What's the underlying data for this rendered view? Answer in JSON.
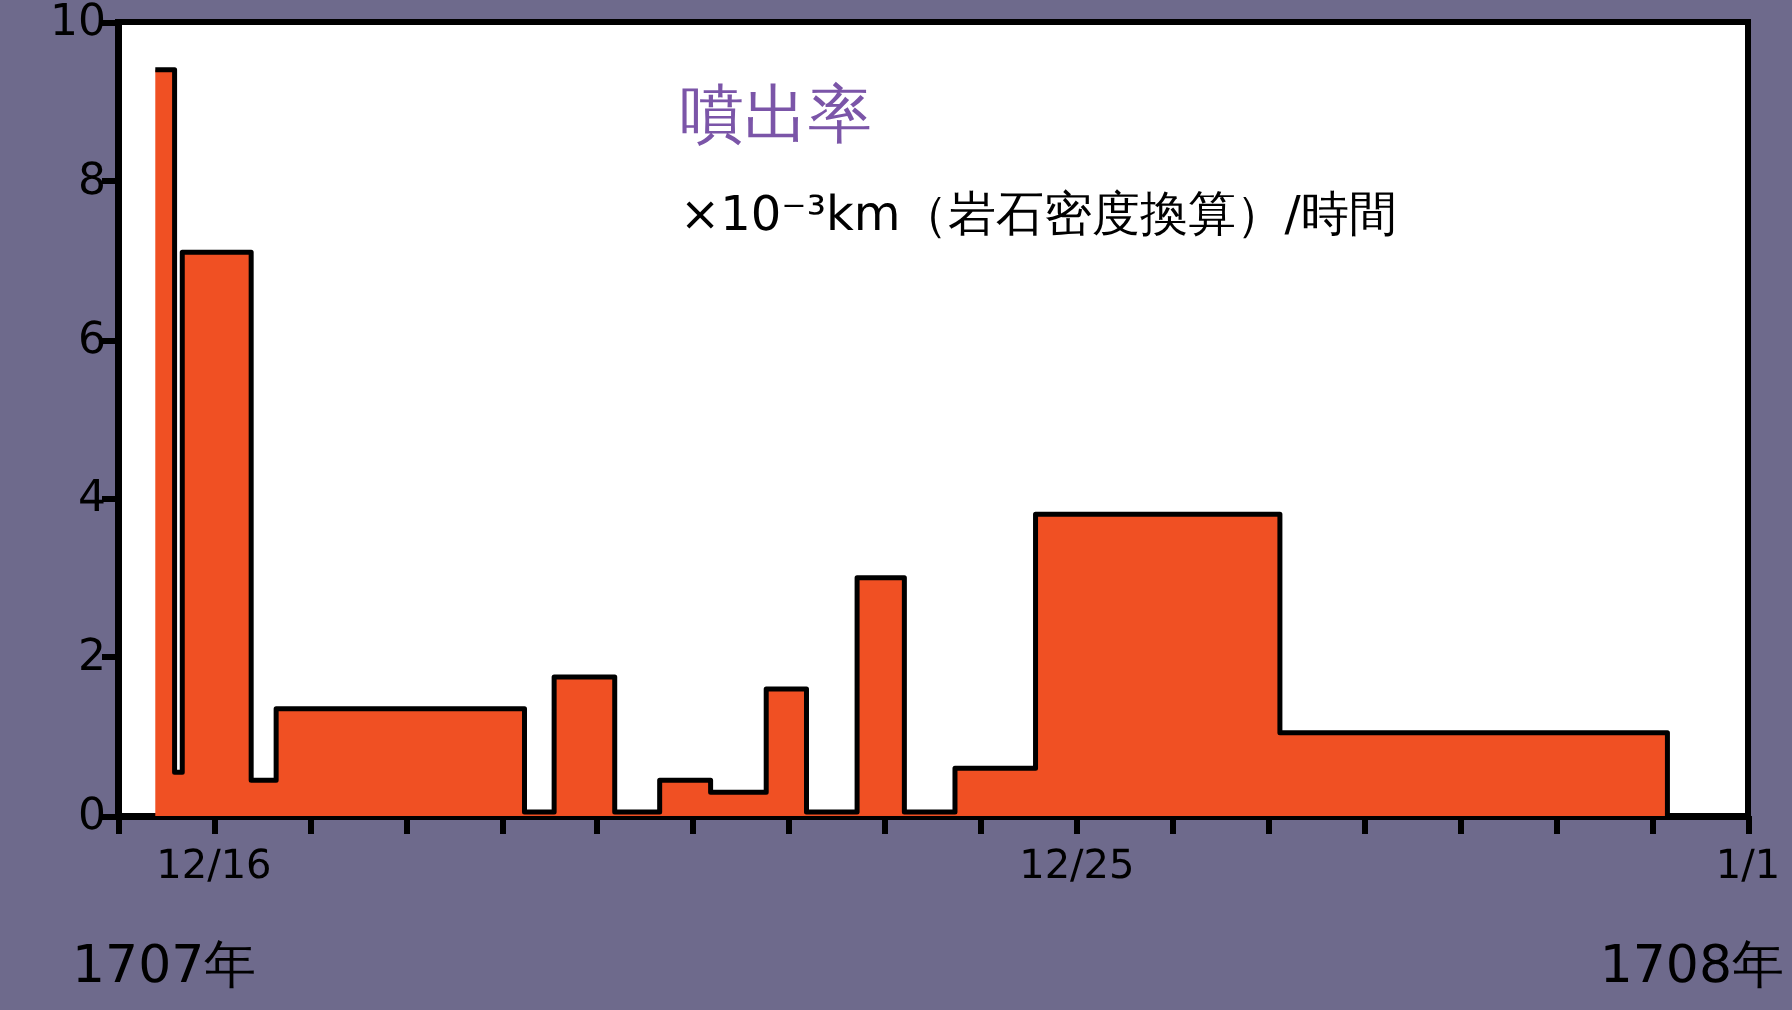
{
  "chart_data": {
    "type": "area",
    "title": "噴出率",
    "subtitle": "×10⁻³km（岩石密度換算）/時間",
    "x": [
      "1707-12-15T09:20",
      "1707-12-15T14:10",
      "1707-12-15T16:05",
      "1707-12-16T09:20",
      "1707-12-16T15:35",
      "1707-12-19T05:45",
      "1707-12-19T13:10",
      "1707-12-20T04:20",
      "1707-12-20T15:35",
      "1707-12-21T04:20",
      "1707-12-21T18:15",
      "1707-12-22T04:20",
      "1707-12-22T17:00",
      "1707-12-23T04:50",
      "1707-12-23T17:30",
      "1707-12-24T13:40",
      "1707-12-27T02:50",
      "1707-12-31T03:50"
    ],
    "values": [
      9.4,
      0.55,
      7.1,
      0.45,
      1.35,
      0.05,
      1.75,
      0.05,
      0.45,
      0.3,
      1.6,
      0.05,
      3.0,
      0.05,
      0.6,
      3.8,
      1.05,
      0
    ],
    "color": "#f05023",
    "marker": "none",
    "grid": false,
    "xlim": [
      "1707-12-15",
      "1708-01-01"
    ],
    "xticks": [
      {
        "value": "1707-12-15",
        "label": null
      },
      {
        "value": "1707-12-16",
        "label": "12/16"
      },
      {
        "value": "1707-12-17",
        "label": null
      },
      {
        "value": "1707-12-18",
        "label": null
      },
      {
        "value": "1707-12-19",
        "label": null
      },
      {
        "value": "1707-12-20",
        "label": null
      },
      {
        "value": "1707-12-21",
        "label": null
      },
      {
        "value": "1707-12-22",
        "label": null
      },
      {
        "value": "1707-12-23",
        "label": null
      },
      {
        "value": "1707-12-24",
        "label": null
      },
      {
        "value": "1707-12-25",
        "label": "12/25"
      },
      {
        "value": "1707-12-26",
        "label": null
      },
      {
        "value": "1707-12-27",
        "label": null
      },
      {
        "value": "1707-12-28",
        "label": null
      },
      {
        "value": "1707-12-29",
        "label": null
      },
      {
        "value": "1707-12-30",
        "label": null
      },
      {
        "value": "1707-12-31",
        "label": null
      },
      {
        "value": "1708-01-01",
        "label": "1/1"
      }
    ],
    "ylim": [
      0,
      10
    ],
    "yticks": [
      0,
      2,
      4,
      6,
      8,
      10
    ],
    "annotations": [
      "1707年",
      "1708年"
    ]
  }
}
